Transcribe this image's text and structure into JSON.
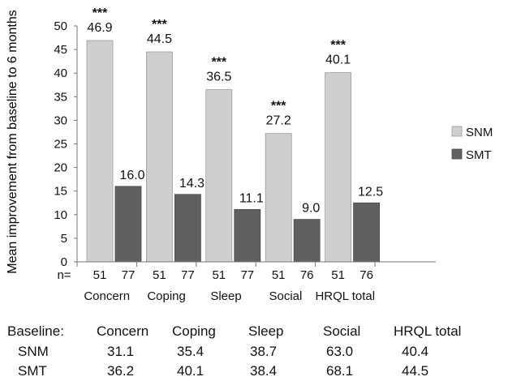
{
  "chart_data": {
    "type": "bar",
    "ylabel": "Mean improvement from baseline to 6 months",
    "ylim": [
      0,
      50
    ],
    "yticks": [
      0,
      5,
      10,
      15,
      20,
      25,
      30,
      35,
      40,
      45,
      50
    ],
    "grid": false,
    "legend_position": "right",
    "categories": [
      "Concern",
      "Coping",
      "Sleep",
      "Social",
      "HRQL total"
    ],
    "series": [
      {
        "name": "SNM",
        "color": "#cfcfcf",
        "values": [
          46.9,
          44.5,
          36.5,
          27.2,
          40.1
        ]
      },
      {
        "name": "SMT",
        "color": "#606060",
        "values": [
          16.0,
          14.3,
          11.1,
          9.0,
          12.5
        ]
      }
    ],
    "value_labels": {
      "SNM": [
        "46.9",
        "44.5",
        "36.5",
        "27.2",
        "40.1"
      ],
      "SMT": [
        "16.0",
        "14.3",
        "11.1",
        "9.0",
        "12.5"
      ]
    },
    "significance": [
      "***",
      "***",
      "***",
      "***",
      "***"
    ],
    "n_label": "n=",
    "n_values": [
      [
        "51",
        "77"
      ],
      [
        "51",
        "77"
      ],
      [
        "51",
        "77"
      ],
      [
        "51",
        "76"
      ],
      [
        "51",
        "76"
      ]
    ]
  },
  "baseline_table": {
    "label": "Baseline:",
    "columns": [
      "Concern",
      "Coping",
      "Sleep",
      "Social",
      "HRQL total"
    ],
    "rows": [
      {
        "name": "SNM",
        "values": [
          "31.1",
          "35.4",
          "38.7",
          "63.0",
          "40.4"
        ]
      },
      {
        "name": "SMT",
        "values": [
          "36.2",
          "40.1",
          "38.4",
          "68.1",
          "44.5"
        ]
      }
    ]
  }
}
